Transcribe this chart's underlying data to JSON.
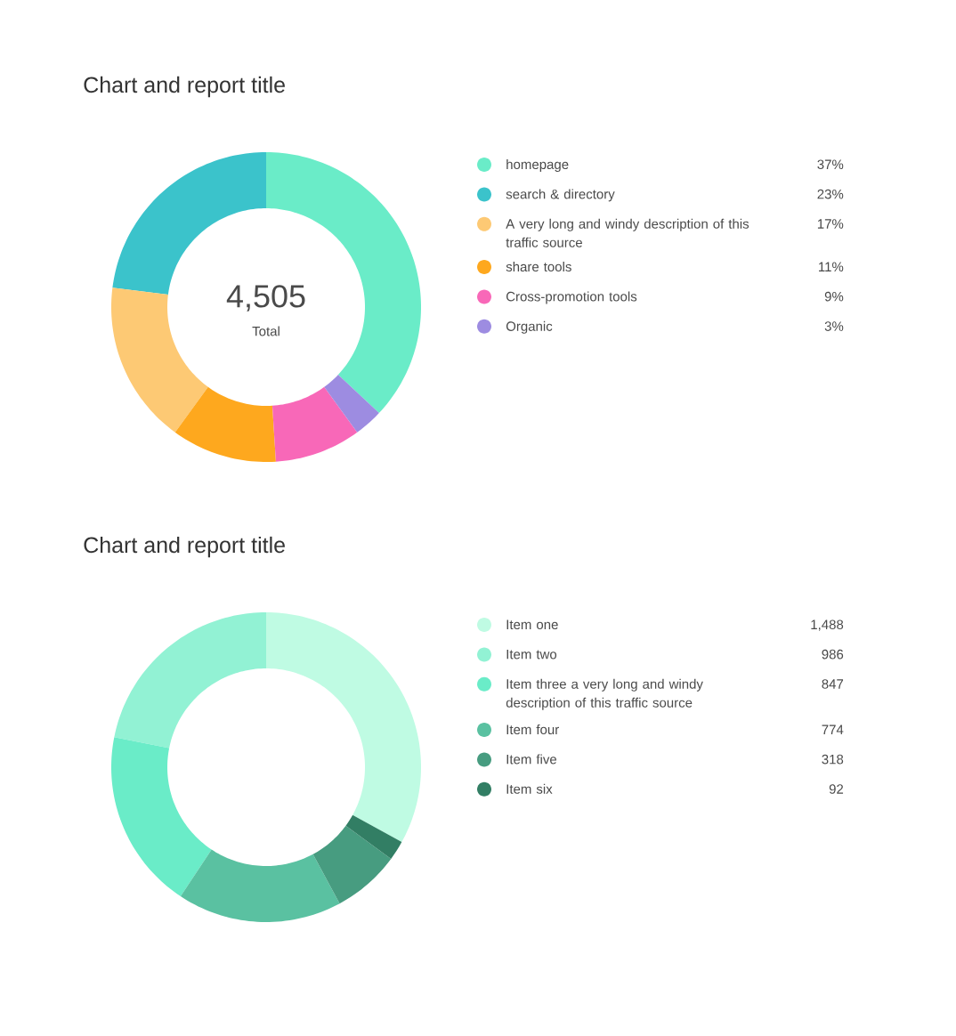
{
  "chart_data": [
    {
      "type": "donut",
      "title": "Chart and report title",
      "categories": [
        "homepage",
        "search & directory",
        "A very long and windy description of this traffic source",
        "share tools",
        "Cross-promotion tools",
        "Organic"
      ],
      "values": [
        37,
        23,
        17,
        11,
        9,
        3
      ],
      "value_labels": [
        "37%",
        "23%",
        "17%",
        "11%",
        "9%",
        "3%"
      ],
      "colors": [
        "#6aecc8",
        "#3bc3cb",
        "#fdc974",
        "#fea81e",
        "#f868b8",
        "#9d8ce1"
      ],
      "legend": "right",
      "annotations": [
        "4,505",
        "Total"
      ]
    },
    {
      "type": "donut",
      "title": "Chart and report title",
      "categories": [
        "Item one",
        "Item two",
        "Item three a very long and windy description of this traffic source",
        "Item four",
        "Item five",
        "Item six"
      ],
      "values": [
        1488,
        986,
        847,
        774,
        318,
        92
      ],
      "value_labels": [
        "1,488",
        "986",
        "847",
        "774",
        "318",
        "92"
      ],
      "colors": [
        "#bffbe3",
        "#92f2d4",
        "#6aecc8",
        "#5ac1a1",
        "#479c80",
        "#327e64"
      ],
      "legend": "right"
    }
  ]
}
